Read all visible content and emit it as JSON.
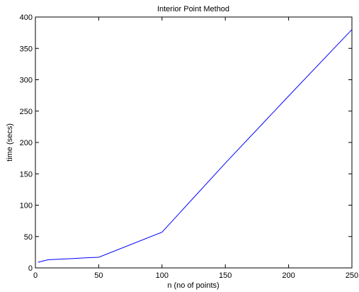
{
  "chart_data": {
    "type": "line",
    "title": "Interior Point Method",
    "xlabel": "n (no of points)",
    "ylabel": "time (secs)",
    "xlim": [
      0,
      250
    ],
    "ylim": [
      0,
      400
    ],
    "xticks": [
      "0",
      "50",
      "100",
      "150",
      "200",
      "250"
    ],
    "yticks": [
      "0",
      "50",
      "100",
      "150",
      "200",
      "250",
      "300",
      "350",
      "400"
    ],
    "grid": false,
    "series": [
      {
        "color": "#0000ff",
        "x": [
          2,
          10,
          20,
          30,
          40,
          50,
          100,
          150,
          200,
          250
        ],
        "y": [
          9,
          13,
          14,
          15,
          16,
          17,
          57,
          167,
          274,
          380
        ]
      }
    ]
  }
}
